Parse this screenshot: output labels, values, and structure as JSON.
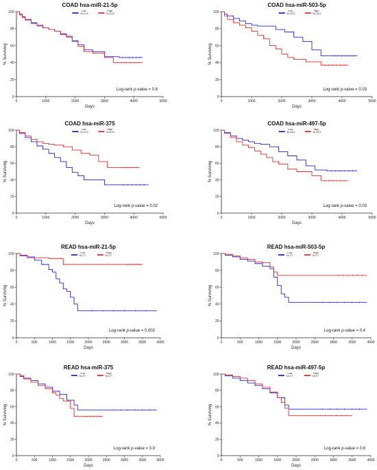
{
  "chart_data": [
    {
      "type": "line",
      "title": "COAD hsa-miR-21-5p",
      "xlabel": "Days",
      "ylabel": "% Surviving",
      "xlim": [
        0,
        5000
      ],
      "ylim": [
        0,
        100
      ],
      "xticks": [
        "0",
        "1000",
        "2000",
        "3000",
        "4000",
        "5000"
      ],
      "yticks": [
        "0",
        "20",
        "40",
        "60",
        "80",
        "100"
      ],
      "pvalue": {
        "prefix": "Log-rank ",
        "italic": "p",
        "suffix": "-value = 0.8"
      },
      "series": [
        {
          "name": "Low",
          "n": "N=213",
          "color": "#2323d8",
          "x": [
            0,
            100,
            200,
            300,
            500,
            700,
            900,
            1100,
            1300,
            1500,
            1700,
            1900,
            2100,
            2300,
            2600,
            3000,
            3500,
            4300
          ],
          "y": [
            100,
            97,
            94,
            91,
            87,
            84,
            81,
            79,
            77,
            74,
            71,
            66,
            61,
            55,
            53,
            47,
            46,
            46
          ]
        },
        {
          "name": "High",
          "n": "N=213",
          "color": "#e32b2b",
          "x": [
            0,
            100,
            200,
            300,
            500,
            700,
            900,
            1100,
            1300,
            1500,
            1700,
            1900,
            2100,
            2300,
            2600,
            3000,
            3300,
            4300
          ],
          "y": [
            100,
            96,
            93,
            90,
            86,
            83,
            81,
            79,
            77,
            73,
            70,
            65,
            59,
            53,
            51,
            46,
            40,
            40
          ]
        }
      ]
    },
    {
      "type": "line",
      "title": "COAD hsa-miR-503-5p",
      "xlabel": "Days",
      "ylabel": "% Surviving",
      "xlim": [
        0,
        5000
      ],
      "ylim": [
        0,
        100
      ],
      "xticks": [
        "0",
        "1000",
        "2000",
        "3000",
        "4000",
        "5000"
      ],
      "yticks": [
        "0",
        "20",
        "40",
        "60",
        "80",
        "100"
      ],
      "pvalue": {
        "prefix": "Log-rank ",
        "italic": "p",
        "suffix": "-value = 0.03"
      },
      "series": [
        {
          "name": "Low",
          "n": "N=213",
          "color": "#2323d8",
          "x": [
            0,
            100,
            200,
            400,
            600,
            800,
            1000,
            1200,
            1500,
            1800,
            2100,
            2400,
            2700,
            3000,
            3300,
            3600,
            4500
          ],
          "y": [
            100,
            97,
            95,
            92,
            89,
            86,
            84,
            83,
            83,
            79,
            76,
            70,
            65,
            55,
            48,
            48,
            48
          ]
        },
        {
          "name": "High",
          "n": "N=213",
          "color": "#e32b2b",
          "x": [
            0,
            100,
            200,
            400,
            600,
            800,
            1000,
            1200,
            1400,
            1600,
            1800,
            2000,
            2200,
            2400,
            2800,
            3300,
            4200
          ],
          "y": [
            100,
            95,
            91,
            87,
            84,
            81,
            77,
            72,
            68,
            60,
            56,
            50,
            46,
            44,
            41,
            37,
            37
          ]
        }
      ]
    },
    {
      "type": "line",
      "title": "COAD hsa-miR-375",
      "xlabel": "Days",
      "ylabel": "% Surviving",
      "xlim": [
        0,
        5000
      ],
      "ylim": [
        0,
        100
      ],
      "xticks": [
        "0",
        "1000",
        "2000",
        "3000",
        "4000",
        "5000"
      ],
      "yticks": [
        "0",
        "20",
        "40",
        "60",
        "80",
        "100"
      ],
      "pvalue": {
        "prefix": "Log-rank ",
        "italic": "p",
        "suffix": "-value = 0.02"
      },
      "series": [
        {
          "name": "Low",
          "n": "N=213",
          "color": "#2323d8",
          "x": [
            0,
            100,
            300,
            500,
            700,
            900,
            1100,
            1300,
            1500,
            1700,
            1900,
            2100,
            2300,
            2600,
            3000,
            3500,
            4500
          ],
          "y": [
            100,
            96,
            91,
            86,
            81,
            77,
            72,
            67,
            62,
            55,
            49,
            45,
            40,
            40,
            34,
            34,
            34
          ]
        },
        {
          "name": "High",
          "n": "N=213",
          "color": "#e32b2b",
          "x": [
            0,
            100,
            300,
            500,
            700,
            900,
            1100,
            1300,
            1600,
            1900,
            2200,
            2500,
            2800,
            3100,
            3500,
            4200
          ],
          "y": [
            100,
            97,
            93,
            89,
            86,
            84,
            83,
            82,
            80,
            76,
            72,
            70,
            62,
            55,
            55,
            55
          ]
        }
      ]
    },
    {
      "type": "line",
      "title": "COAD hsa-miR-497-5p",
      "xlabel": "Days",
      "ylabel": "% Surviving",
      "xlim": [
        0,
        5000
      ],
      "ylim": [
        0,
        100
      ],
      "xticks": [
        "0",
        "1000",
        "2000",
        "3000",
        "4000",
        "5000"
      ],
      "yticks": [
        "0",
        "20",
        "40",
        "60",
        "80",
        "100"
      ],
      "pvalue": {
        "prefix": "Log-rank ",
        "italic": "p",
        "suffix": "-value = 0.03"
      },
      "series": [
        {
          "name": "Low",
          "n": "N=213",
          "color": "#2323d8",
          "x": [
            0,
            100,
            300,
            500,
            700,
            900,
            1100,
            1300,
            1600,
            1900,
            2200,
            2500,
            2800,
            3100,
            3500,
            4500
          ],
          "y": [
            100,
            97,
            93,
            90,
            88,
            86,
            84,
            83,
            80,
            74,
            69,
            64,
            57,
            52,
            51,
            51
          ]
        },
        {
          "name": "High",
          "n": "N=213",
          "color": "#e32b2b",
          "x": [
            0,
            100,
            300,
            500,
            700,
            900,
            1100,
            1300,
            1500,
            1700,
            1900,
            2200,
            2500,
            2800,
            3000,
            3300,
            4200
          ],
          "y": [
            100,
            96,
            91,
            86,
            82,
            79,
            75,
            71,
            67,
            62,
            59,
            53,
            50,
            50,
            45,
            39,
            39
          ]
        }
      ]
    },
    {
      "type": "line",
      "title": "READ hsa-miR-21-5p",
      "xlabel": "Days",
      "ylabel": "% Surviving",
      "xlim": [
        0,
        4000
      ],
      "ylim": [
        0,
        100
      ],
      "xticks": [
        "0",
        "500",
        "1000",
        "1500",
        "2000",
        "2500",
        "3000",
        "3500",
        "4000"
      ],
      "yticks": [
        "0",
        "20",
        "40",
        "60",
        "80",
        "100"
      ],
      "pvalue": {
        "prefix": "Log-rank ",
        "italic": "p",
        "suffix": "-value = 0.002"
      },
      "series": [
        {
          "name": "Low",
          "n": "N=77",
          "color": "#2323d8",
          "x": [
            0,
            100,
            300,
            500,
            700,
            900,
            1000,
            1100,
            1200,
            1300,
            1400,
            1500,
            1600,
            1700,
            1800,
            3900
          ],
          "y": [
            100,
            98,
            96,
            92,
            87,
            81,
            78,
            70,
            65,
            58,
            55,
            48,
            40,
            32,
            32,
            32
          ]
        },
        {
          "name": "High",
          "n": "N=77",
          "color": "#e32b2b",
          "x": [
            0,
            100,
            300,
            600,
            900,
            1200,
            1300,
            1600,
            2000,
            2500,
            3000,
            3500
          ],
          "y": [
            100,
            97,
            95,
            95,
            94,
            94,
            87,
            87,
            87,
            87,
            87,
            87
          ]
        }
      ]
    },
    {
      "type": "line",
      "title": "READ hsa-miR-503-5p",
      "xlabel": "Days",
      "ylabel": "% Surviving",
      "xlim": [
        0,
        4000
      ],
      "ylim": [
        0,
        100
      ],
      "xticks": [
        "0",
        "500",
        "1000",
        "1500",
        "2000",
        "2500",
        "3000",
        "3500",
        "4000"
      ],
      "yticks": [
        "0",
        "20",
        "40",
        "60",
        "80",
        "100"
      ],
      "pvalue": {
        "prefix": "Log-rank ",
        "italic": "p",
        "suffix": "-value = 0.4"
      },
      "series": [
        {
          "name": "Low",
          "n": "N=77",
          "color": "#2323d8",
          "x": [
            0,
            100,
            300,
            500,
            700,
            900,
            1100,
            1300,
            1400,
            1500,
            1600,
            1700,
            1800,
            2500,
            3900
          ],
          "y": [
            100,
            98,
            96,
            93,
            91,
            88,
            85,
            82,
            72,
            62,
            52,
            48,
            42,
            42,
            42
          ]
        },
        {
          "name": "High",
          "n": "N=77",
          "color": "#e32b2b",
          "x": [
            0,
            100,
            300,
            500,
            700,
            900,
            1100,
            1300,
            1400,
            1500,
            2000,
            3000,
            3900
          ],
          "y": [
            100,
            99,
            97,
            95,
            93,
            90,
            89,
            84,
            78,
            74,
            74,
            74,
            74
          ]
        }
      ]
    },
    {
      "type": "line",
      "title": "READ hsa-miR-375",
      "xlabel": "Days",
      "ylabel": "% Surviving",
      "xlim": [
        0,
        4000
      ],
      "ylim": [
        0,
        100
      ],
      "xticks": [
        "0",
        "500",
        "1000",
        "1500",
        "2000",
        "2500",
        "3000",
        "3500",
        "4000"
      ],
      "yticks": [
        "0",
        "20",
        "40",
        "60",
        "80",
        "100"
      ],
      "pvalue": {
        "prefix": "Log-rank ",
        "italic": "p",
        "suffix": "-value = 0.9"
      },
      "series": [
        {
          "name": "Low",
          "n": "N=77",
          "color": "#2323d8",
          "x": [
            0,
            100,
            200,
            400,
            600,
            800,
            1000,
            1200,
            1400,
            1600,
            1700,
            1800,
            2500,
            3900
          ],
          "y": [
            100,
            97,
            95,
            92,
            88,
            84,
            79,
            75,
            68,
            62,
            56,
            56,
            56,
            56
          ]
        },
        {
          "name": "High",
          "n": "N=77",
          "color": "#e32b2b",
          "x": [
            0,
            100,
            200,
            400,
            600,
            800,
            1000,
            1100,
            1200,
            1300,
            1500,
            1600,
            1800,
            2400
          ],
          "y": [
            100,
            98,
            94,
            90,
            86,
            82,
            77,
            74,
            70,
            67,
            58,
            48,
            48,
            48
          ]
        }
      ]
    },
    {
      "type": "line",
      "title": "READ hsa-miR-497-5p",
      "xlabel": "Days",
      "ylabel": "% Surviving",
      "xlim": [
        0,
        4000
      ],
      "ylim": [
        0,
        100
      ],
      "xticks": [
        "0",
        "500",
        "1000",
        "1500",
        "2000",
        "2500",
        "3000",
        "3500",
        "4000"
      ],
      "yticks": [
        "0",
        "20",
        "40",
        "60",
        "80",
        "100"
      ],
      "pvalue": {
        "prefix": "Log-rank ",
        "italic": "p",
        "suffix": "-value = 0.8"
      },
      "series": [
        {
          "name": "Low",
          "n": "N=77",
          "color": "#2323d8",
          "x": [
            0,
            100,
            300,
            500,
            700,
            900,
            1100,
            1300,
            1500,
            1700,
            1800,
            2500,
            3900
          ],
          "y": [
            100,
            98,
            95,
            92,
            89,
            86,
            82,
            77,
            71,
            62,
            57,
            57,
            57
          ]
        },
        {
          "name": "High",
          "n": "N=77",
          "color": "#e32b2b",
          "x": [
            0,
            100,
            300,
            500,
            700,
            900,
            1100,
            1300,
            1500,
            1600,
            1700,
            1800,
            2500,
            3500
          ],
          "y": [
            100,
            99,
            97,
            95,
            92,
            88,
            84,
            78,
            71,
            65,
            58,
            49,
            49,
            49
          ]
        }
      ]
    }
  ]
}
